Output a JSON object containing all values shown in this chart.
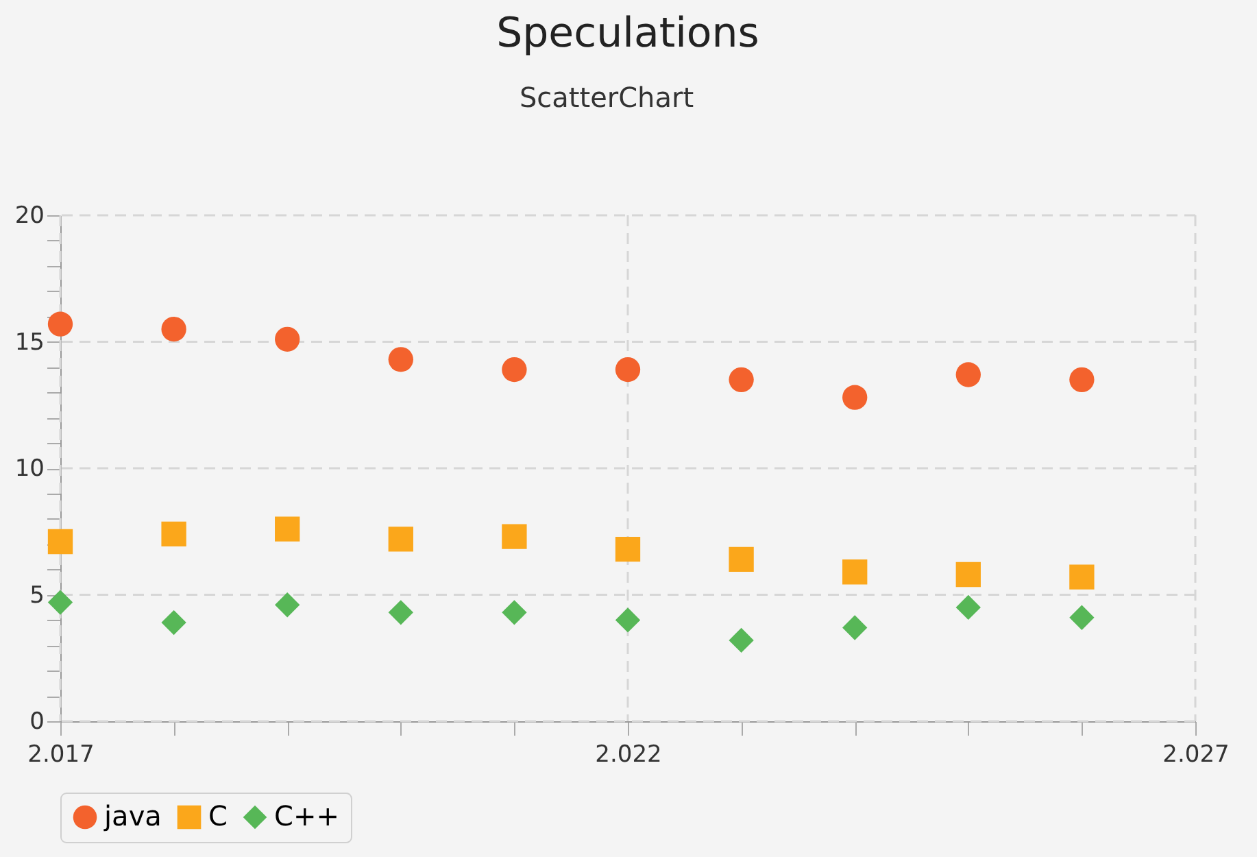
{
  "chart_data": {
    "type": "scatter",
    "title": "Speculations",
    "annotations": [
      "ScatterChart"
    ],
    "x": [
      2.017,
      2.018,
      2.019,
      2.02,
      2.021,
      2.022,
      2.023,
      2.024,
      2.025,
      2.026
    ],
    "series": [
      {
        "name": "java",
        "color": "#f3622d",
        "marker": "circle",
        "values": [
          15.7,
          15.5,
          15.1,
          14.3,
          13.9,
          13.9,
          13.5,
          12.8,
          13.7,
          13.5
        ]
      },
      {
        "name": "C",
        "color": "#fba71b",
        "marker": "square",
        "values": [
          7.1,
          7.4,
          7.6,
          7.2,
          7.3,
          6.8,
          6.4,
          5.9,
          5.8,
          5.7
        ]
      },
      {
        "name": "C++",
        "color": "#57b757",
        "marker": "diamond",
        "values": [
          4.7,
          3.9,
          4.6,
          4.3,
          4.3,
          4.0,
          3.2,
          3.7,
          4.5,
          4.1
        ]
      }
    ],
    "xlim": [
      2.017,
      2.027
    ],
    "xticks": [
      {
        "value": 2.017,
        "label": "2.017"
      },
      {
        "value": 2.018,
        "label": null
      },
      {
        "value": 2.019,
        "label": null
      },
      {
        "value": 2.02,
        "label": null
      },
      {
        "value": 2.021,
        "label": null
      },
      {
        "value": 2.022,
        "label": "2.022"
      },
      {
        "value": 2.023,
        "label": null
      },
      {
        "value": 2.024,
        "label": null
      },
      {
        "value": 2.025,
        "label": null
      },
      {
        "value": 2.026,
        "label": null
      },
      {
        "value": 2.027,
        "label": "2.027"
      }
    ],
    "ylim": [
      0,
      20
    ],
    "yticks": [
      0,
      {
        "value": 1,
        "label": null
      },
      {
        "value": 2,
        "label": null
      },
      {
        "value": 3,
        "label": null
      },
      {
        "value": 4,
        "label": null
      },
      5,
      {
        "value": 6,
        "label": null
      },
      {
        "value": 7,
        "label": null
      },
      {
        "value": 8,
        "label": null
      },
      {
        "value": 9,
        "label": null
      },
      10,
      {
        "value": 11,
        "label": null
      },
      {
        "value": 12,
        "label": null
      },
      {
        "value": 13,
        "label": null
      },
      {
        "value": 14,
        "label": null
      },
      15,
      {
        "value": 16,
        "label": null
      },
      {
        "value": 17,
        "label": null
      },
      {
        "value": 18,
        "label": null
      },
      {
        "value": 19,
        "label": null
      },
      20
    ],
    "grid": true,
    "legend": "bottom"
  }
}
